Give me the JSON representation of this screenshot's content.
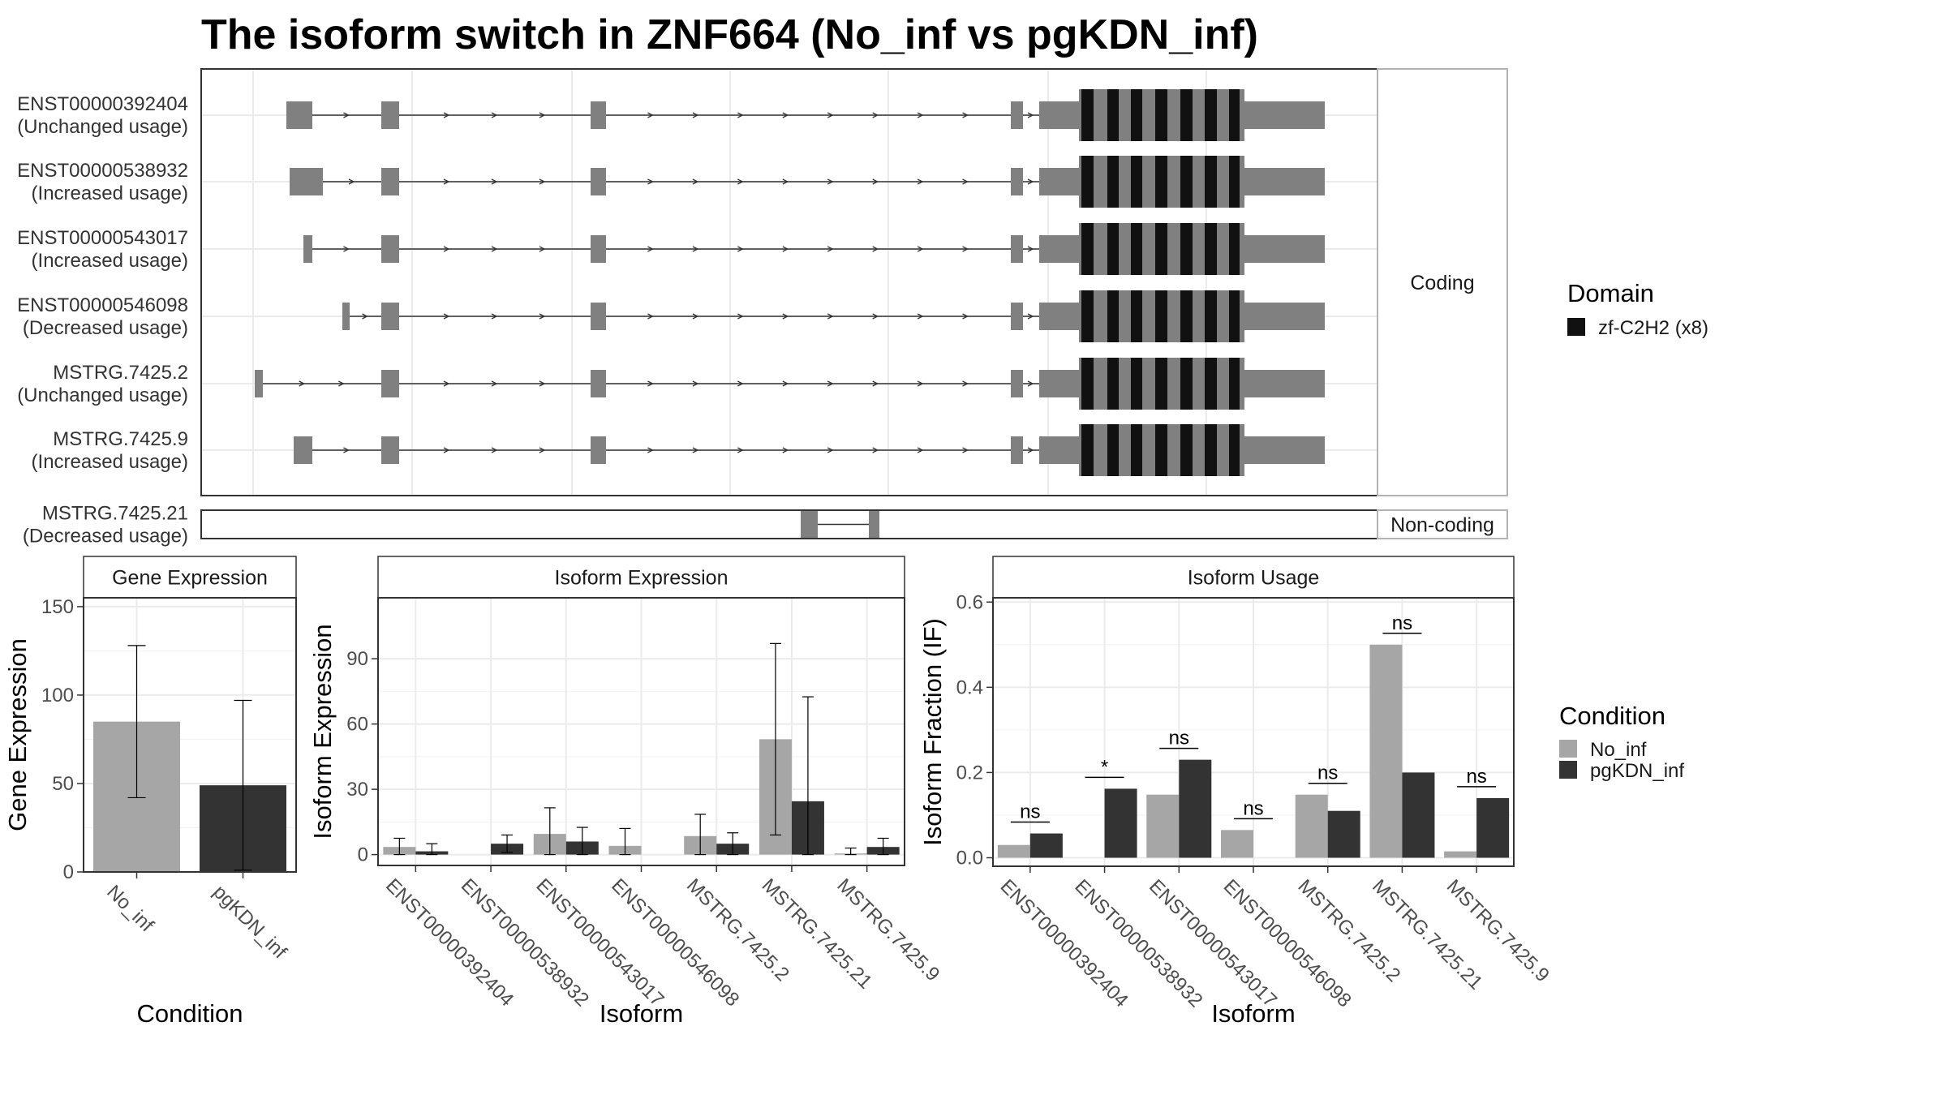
{
  "figure": {
    "title": "The isoform switch in ZNF664 (No_inf vs pgKDN_inf)"
  },
  "structure": {
    "coding_label": "Coding",
    "noncoding_label": "Non-coding",
    "isoforms": [
      {
        "id": "ENST00000392404",
        "usage": "(Unchanged usage)",
        "group": "coding"
      },
      {
        "id": "ENST00000538932",
        "usage": "(Increased usage)",
        "group": "coding"
      },
      {
        "id": "ENST00000543017",
        "usage": "(Increased usage)",
        "group": "coding"
      },
      {
        "id": "ENST00000546098",
        "usage": "(Decreased usage)",
        "group": "coding"
      },
      {
        "id": "MSTRG.7425.2",
        "usage": "(Unchanged usage)",
        "group": "coding"
      },
      {
        "id": "MSTRG.7425.9",
        "usage": "(Increased usage)",
        "group": "coding"
      },
      {
        "id": "MSTRG.7425.21",
        "usage": "(Decreased usage)",
        "group": "non-coding"
      }
    ]
  },
  "domain_legend": {
    "title": "Domain",
    "entries": [
      {
        "label": "zf-C2H2 (x8)",
        "color": "#111111"
      }
    ]
  },
  "condition_legend": {
    "title": "Condition",
    "entries": [
      {
        "label": "No_inf",
        "color": "#a6a6a6"
      },
      {
        "label": "pgKDN_inf",
        "color": "#333333"
      }
    ]
  },
  "colors": {
    "no_inf": "#a6a6a6",
    "pgkdn_inf": "#333333",
    "exon": "#808080",
    "domain": "#111111"
  },
  "chart_data": [
    {
      "type": "bar",
      "panel": "Gene Expression",
      "categories": [
        "No_inf",
        "pgKDN_inf"
      ],
      "values": [
        85,
        49
      ],
      "error_low": [
        42,
        1
      ],
      "error_high": [
        128,
        97
      ],
      "xlabel": "Condition",
      "ylabel": "Gene Expression",
      "ylim": [
        0,
        155
      ],
      "yticks": [
        0,
        50,
        100,
        150
      ],
      "grid": true
    },
    {
      "type": "bar",
      "panel": "Isoform Expression",
      "categories": [
        "ENST00000392404",
        "ENST00000538932",
        "ENST00000543017",
        "ENST00000546098",
        "MSTRG.7425.2",
        "MSTRG.7425.21",
        "MSTRG.7425.9"
      ],
      "series": [
        {
          "name": "No_inf",
          "values": [
            3.5,
            0,
            9.5,
            4,
            8.5,
            53,
            0.5
          ],
          "error_low": [
            0,
            0,
            0,
            0,
            0,
            9,
            0
          ],
          "error_high": [
            7.5,
            0,
            21.5,
            12,
            18.5,
            97,
            3
          ]
        },
        {
          "name": "pgKDN_inf",
          "values": [
            1.5,
            5,
            6,
            0,
            5,
            24.5,
            3.5
          ],
          "error_low": [
            0,
            1,
            0,
            0,
            0,
            0,
            0
          ],
          "error_high": [
            5,
            9,
            12.5,
            0,
            10,
            72.5,
            7.5
          ]
        }
      ],
      "xlabel": "Isoform",
      "ylabel": "Isoform Expression",
      "ylim": [
        -5,
        118
      ],
      "yticks": [
        0,
        30,
        60,
        90
      ],
      "grid": true
    },
    {
      "type": "bar",
      "panel": "Isoform Usage",
      "categories": [
        "ENST00000392404",
        "ENST00000538932",
        "ENST00000543017",
        "ENST00000546098",
        "MSTRG.7425.2",
        "MSTRG.7425.21",
        "MSTRG.7425.9"
      ],
      "series": [
        {
          "name": "No_inf",
          "values": [
            0.03,
            0,
            0.148,
            0.065,
            0.148,
            0.5,
            0.015
          ]
        },
        {
          "name": "pgKDN_inf",
          "values": [
            0.057,
            0.162,
            0.23,
            0,
            0.11,
            0.2,
            0.14
          ]
        }
      ],
      "significance": [
        "ns",
        "*",
        "ns",
        "ns",
        "ns",
        "ns",
        "ns"
      ],
      "xlabel": "Isoform",
      "ylabel": "Isoform Fraction (IF)",
      "ylim": [
        -0.02,
        0.61
      ],
      "yticks": [
        0.0,
        0.2,
        0.4,
        0.6
      ],
      "grid": true
    }
  ]
}
